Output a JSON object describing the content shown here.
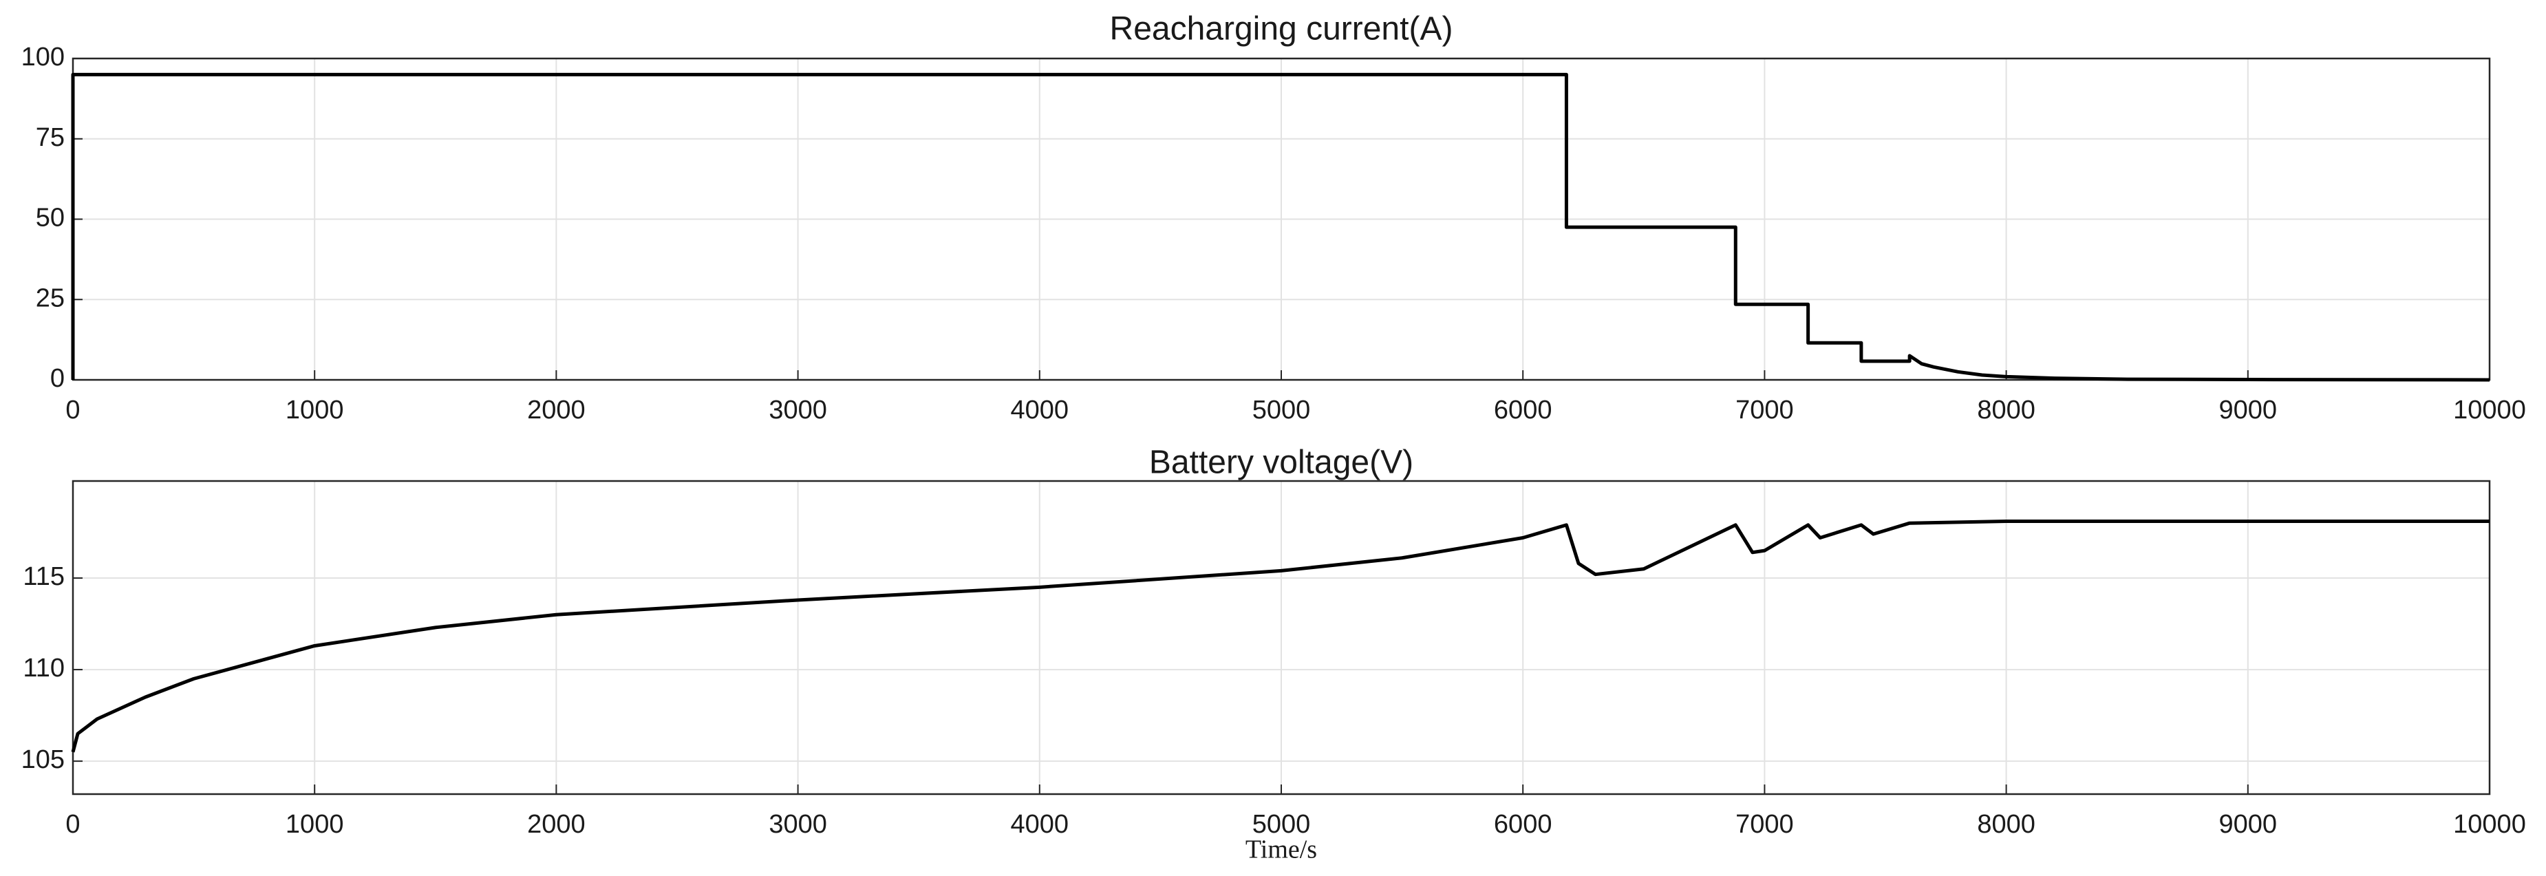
{
  "chart_data": [
    {
      "type": "line",
      "title": "Reacharging current(A)",
      "color": "#000000",
      "grid": true,
      "xlim": [
        0,
        10000
      ],
      "xticks": [
        0,
        1000,
        2000,
        3000,
        4000,
        5000,
        6000,
        7000,
        8000,
        9000,
        10000
      ],
      "ylim": [
        0,
        100
      ],
      "yticks": [
        0,
        25,
        50,
        75,
        100
      ],
      "x": [
        0,
        0,
        6180,
        6180,
        6880,
        6880,
        7180,
        7180,
        7400,
        7400,
        7600,
        7600,
        7650,
        7700,
        7800,
        7900,
        8000,
        8200,
        8500,
        9000,
        10000
      ],
      "values": [
        0,
        95,
        95,
        47.5,
        47.5,
        23.5,
        23.5,
        11.5,
        11.5,
        5.8,
        5.8,
        7.5,
        5,
        4,
        2.5,
        1.5,
        1,
        0.5,
        0.2,
        0.1,
        0
      ]
    },
    {
      "type": "line",
      "title": "Battery voltage(V)",
      "xlabel": "Time/s",
      "color": "#000000",
      "grid": true,
      "xlim": [
        0,
        10000
      ],
      "xticks": [
        0,
        1000,
        2000,
        3000,
        4000,
        5000,
        6000,
        7000,
        8000,
        9000,
        10000
      ],
      "ylim": [
        103.2,
        120.3
      ],
      "yticks": [
        105,
        110,
        115
      ],
      "x": [
        0,
        20,
        100,
        300,
        500,
        1000,
        1500,
        2000,
        3000,
        4000,
        5000,
        5500,
        6000,
        6180,
        6230,
        6300,
        6500,
        6880,
        6950,
        7000,
        7180,
        7230,
        7400,
        7450,
        7600,
        8000,
        10000
      ],
      "values": [
        105.5,
        106.5,
        107.3,
        108.5,
        109.5,
        111.3,
        112.3,
        113,
        113.8,
        114.5,
        115.4,
        116.1,
        117.2,
        117.9,
        115.8,
        115.2,
        115.5,
        117.9,
        116.4,
        116.5,
        117.9,
        117.2,
        117.9,
        117.4,
        118,
        118.1,
        118.1
      ]
    }
  ]
}
